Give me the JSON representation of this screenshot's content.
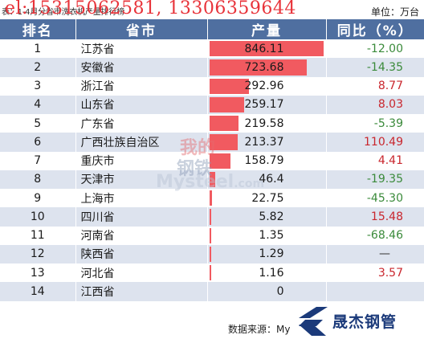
{
  "caption": "表：1-4月分省市洗衣机产量排行榜",
  "phone_overlay": "el:15315062581, 13306359644",
  "unit_label": "单位：万台",
  "headers": {
    "rank": "排名",
    "province": "省市",
    "production": "产量",
    "yoy": "同比（%）"
  },
  "rows": [
    {
      "rank": "1",
      "province": "江苏省",
      "production": 846.11,
      "production_text": "846.11",
      "yoy": "-12.00",
      "sign": "neg"
    },
    {
      "rank": "2",
      "province": "安徽省",
      "production": 723.68,
      "production_text": "723.68",
      "yoy": "-14.35",
      "sign": "neg"
    },
    {
      "rank": "3",
      "province": "浙江省",
      "production": 292.96,
      "production_text": "292.96",
      "yoy": "8.77",
      "sign": "pos"
    },
    {
      "rank": "4",
      "province": "山东省",
      "production": 259.17,
      "production_text": "259.17",
      "yoy": "8.03",
      "sign": "pos"
    },
    {
      "rank": "5",
      "province": "广东省",
      "production": 219.58,
      "production_text": "219.58",
      "yoy": "-5.39",
      "sign": "neg"
    },
    {
      "rank": "6",
      "province": "广西壮族自治区",
      "production": 213.37,
      "production_text": "213.37",
      "yoy": "110.49",
      "sign": "pos"
    },
    {
      "rank": "7",
      "province": "重庆市",
      "production": 158.79,
      "production_text": "158.79",
      "yoy": "4.41",
      "sign": "pos"
    },
    {
      "rank": "8",
      "province": "天津市",
      "production": 46.4,
      "production_text": "46.4",
      "yoy": "-19.35",
      "sign": "neg"
    },
    {
      "rank": "9",
      "province": "上海市",
      "production": 22.75,
      "production_text": "22.75",
      "yoy": "-45.30",
      "sign": "neg"
    },
    {
      "rank": "10",
      "province": "四川省",
      "production": 5.82,
      "production_text": "5.82",
      "yoy": "15.48",
      "sign": "pos"
    },
    {
      "rank": "11",
      "province": "河南省",
      "production": 1.35,
      "production_text": "1.35",
      "yoy": "-68.46",
      "sign": "neg"
    },
    {
      "rank": "12",
      "province": "陕西省",
      "production": 1.29,
      "production_text": "1.29",
      "yoy": "—",
      "sign": "dash"
    },
    {
      "rank": "13",
      "province": "河北省",
      "production": 1.16,
      "production_text": "1.16",
      "yoy": "3.57",
      "sign": "pos"
    },
    {
      "rank": "14",
      "province": "江西省",
      "production": 0,
      "production_text": "0",
      "yoy": "",
      "sign": "dash"
    }
  ],
  "watermark": {
    "line1": "我的",
    "line2": "钢铁",
    "line3": "Mysteel",
    "line3_suffix": ".com"
  },
  "source_label": "数据来源：My",
  "brand": {
    "name": "晟杰钢管",
    "color": "#1b3a7a"
  },
  "colors": {
    "header_bg": "#4f6fa0",
    "bar": "#f15a60",
    "negative": "#3a8a3a",
    "positive": "#c9262d",
    "stripe": "#dde3ee"
  }
}
